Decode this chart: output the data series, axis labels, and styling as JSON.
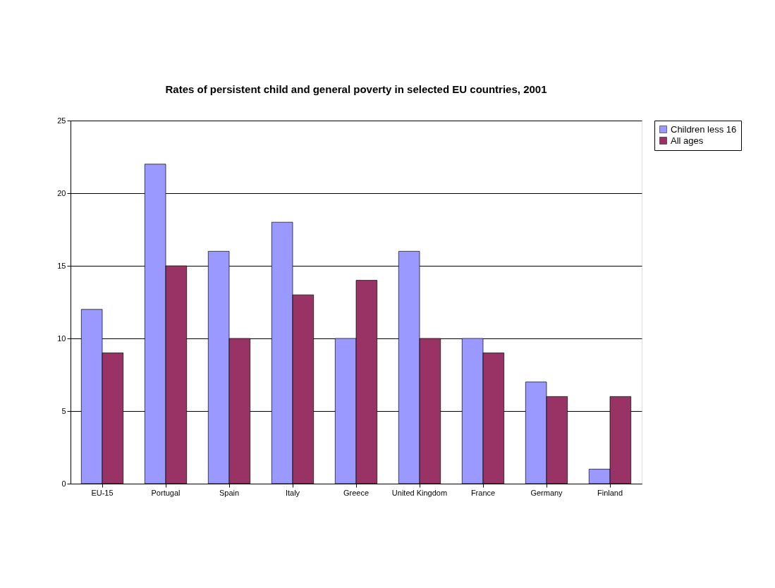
{
  "chart_data": {
    "type": "bar",
    "title": "Rates of persistent child and general poverty in selected EU countries, 2001",
    "categories": [
      "EU-15",
      "Portugal",
      "Spain",
      "Italy",
      "Greece",
      "United Kingdom",
      "France",
      "Germany",
      "Finland"
    ],
    "series": [
      {
        "name": "Children less 16",
        "color": "#9999ff",
        "values": [
          12,
          22,
          16,
          18,
          10,
          16,
          10,
          7,
          1
        ]
      },
      {
        "name": "All ages",
        "color": "#993366",
        "values": [
          9,
          15,
          10,
          13,
          14,
          10,
          9,
          6,
          6
        ]
      }
    ],
    "ylim": [
      0,
      25
    ],
    "yticks": [
      0,
      5,
      10,
      15,
      20,
      25
    ],
    "grid": "y",
    "legend": "right"
  }
}
